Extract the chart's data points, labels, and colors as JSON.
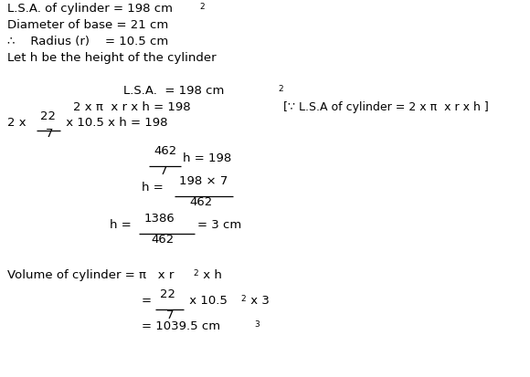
{
  "bg_color": "#ffffff",
  "text_color": "#000000",
  "figsize": [
    5.8,
    4.13
  ],
  "dpi": 100,
  "fs": 9.5,
  "fs_sup": 6.5,
  "fs_bracket": 9.0,
  "lines_given": [
    "L.S.A. of cylinder = 198 cm",
    "Diameter of base = 21 cm",
    "∴    Radius (r)    = 10.5 cm",
    "Let h be the height of the cylinder"
  ],
  "bracket_text": "[∵ L.S.A of cylinder = 2 x π  x r x h ]"
}
